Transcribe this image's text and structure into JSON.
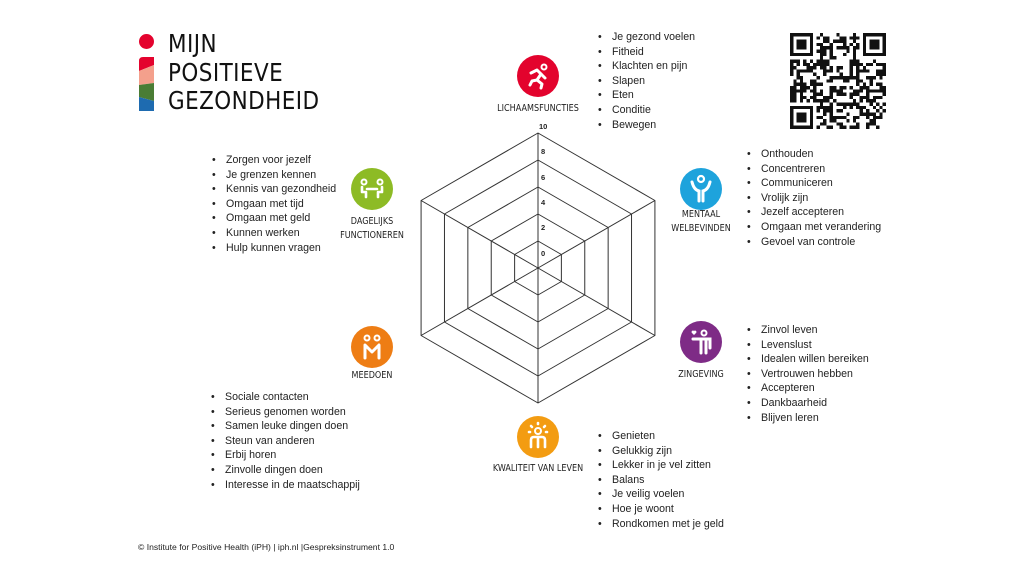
{
  "logo": {
    "lines": [
      "MIJN",
      "POSITIEVE",
      "GEZONDHEID"
    ],
    "colors": {
      "dot": "#e4032e",
      "bar": [
        "#e4032e",
        "#f4a08c",
        "#4a7d35",
        "#1e6bb0"
      ]
    }
  },
  "scale": {
    "labels": [
      "10",
      "8",
      "6",
      "4",
      "2",
      "0"
    ]
  },
  "dimensions": [
    {
      "name": "LICHAAMSFUNCTIES",
      "color": "#e3032d",
      "icon": "running-person-icon",
      "items": [
        "Je gezond voelen",
        "Fitheid",
        "Klachten en pijn",
        "Slapen",
        "Eten",
        "Conditie",
        "Bewegen"
      ]
    },
    {
      "name": "MENTAAL\nWELBEVINDEN",
      "label_lines": [
        "MENTAAL",
        "WELBEVINDEN"
      ],
      "color": "#1ea3dc",
      "icon": "person-arms-up-icon",
      "items": [
        "Onthouden",
        "Concentreren",
        "Communiceren",
        "Vrolijk zijn",
        "Jezelf accepteren",
        "Omgaan met verandering",
        "Gevoel van controle"
      ]
    },
    {
      "name": "ZINGEVING",
      "color": "#7e2b86",
      "icon": "person-heart-icon",
      "items": [
        "Zinvol leven",
        "Levenslust",
        "Idealen willen bereiken",
        "Vertrouwen hebben",
        "Accepteren",
        "Dankbaarheid",
        "Blijven leren"
      ]
    },
    {
      "name": "KWALITEIT VAN LEVEN",
      "color": "#f39c12",
      "icon": "person-sun-icon",
      "items": [
        "Genieten",
        "Gelukkig zijn",
        "Lekker in je vel zitten",
        "Balans",
        "Je veilig voelen",
        "Hoe je woont",
        "Rondkomen met je geld"
      ]
    },
    {
      "name": "MEEDOEN",
      "color": "#ee7d14",
      "icon": "two-people-icon",
      "items": [
        "Sociale contacten",
        "Serieus genomen worden",
        "Samen leuke dingen doen",
        "Steun van anderen",
        "Erbij horen",
        "Zinvolle dingen doen",
        "Interesse in de maatschappij"
      ]
    },
    {
      "name": "DAGELIJKS\nFUNCTIONEREN",
      "label_lines": [
        "DAGELIJKS",
        "FUNCTIONEREN"
      ],
      "color": "#8dbb25",
      "icon": "people-at-table-icon",
      "items": [
        "Zorgen voor jezelf",
        "Je grenzen kennen",
        "Kennis van gezondheid",
        "Omgaan met tijd",
        "Omgaan met geld",
        "Kunnen werken",
        "Hulp kunnen vragen"
      ]
    }
  ],
  "footer": "© Institute for Positive Health (iPH) | iph.nl |Gespreksinstrument 1.0"
}
